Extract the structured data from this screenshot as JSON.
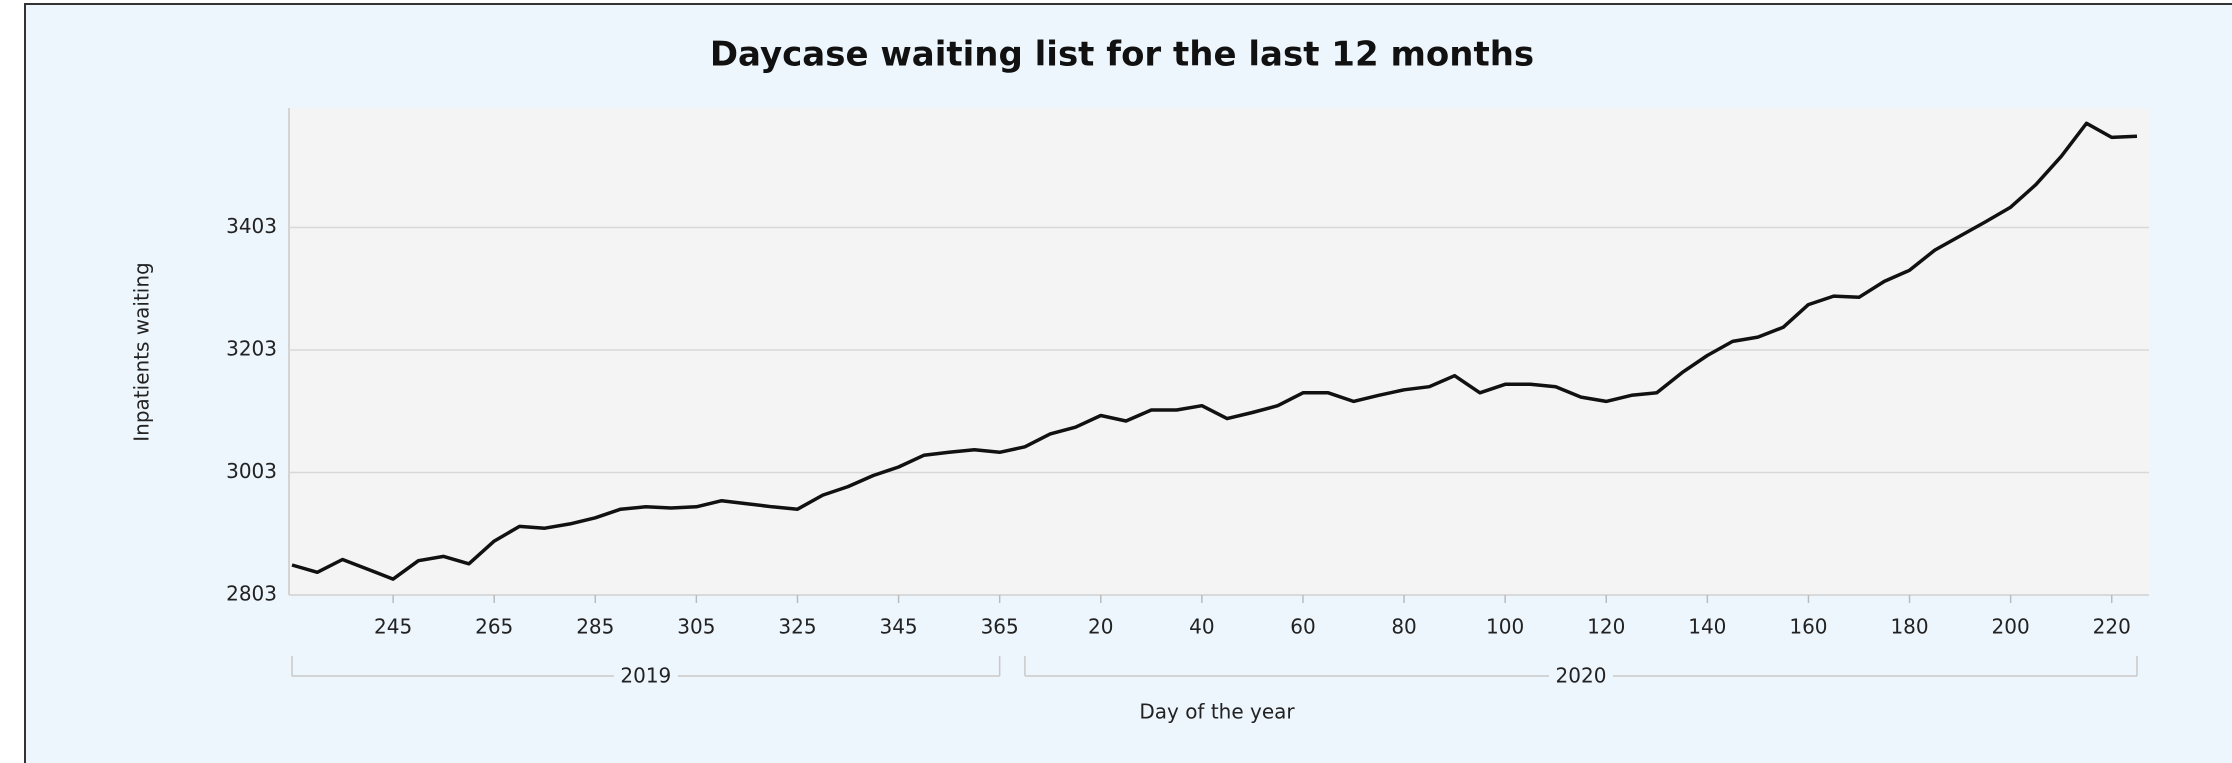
{
  "chart_data": {
    "type": "line",
    "title": "Daycase waiting list for the last 12 months",
    "x_label": "Day of the year",
    "y_label": "Inpatients waiting",
    "groups": [
      {
        "label": "2019",
        "categories": [
          null,
          null,
          null,
          null,
          "245",
          null,
          null,
          null,
          "265",
          null,
          null,
          null,
          "285",
          null,
          null,
          null,
          "305",
          null,
          null,
          null,
          "325",
          null,
          null,
          null,
          "345",
          null,
          null,
          null,
          "365"
        ]
      },
      {
        "label": "2020",
        "categories": [
          null,
          null,
          null,
          "20",
          null,
          null,
          null,
          "40",
          null,
          null,
          null,
          "60",
          null,
          null,
          null,
          "80",
          null,
          null,
          null,
          "100",
          null,
          null,
          null,
          "120",
          null,
          null,
          null,
          "140",
          null,
          null,
          null,
          "160",
          null,
          null,
          null,
          "180",
          null,
          null,
          null,
          "200",
          null,
          null,
          null,
          "220",
          null
        ]
      }
    ],
    "series": [
      {
        "name": "Inpatients waiting",
        "color": "#111111",
        "values": [
          2852,
          2840,
          2861,
          2845,
          2829,
          2859,
          2866,
          2854,
          2891,
          2915,
          2912,
          2919,
          2929,
          2943,
          2947,
          2945,
          2947,
          2957,
          2952,
          2947,
          2943,
          2966,
          2980,
          2998,
          3012,
          3031,
          3036,
          3040,
          3036,
          3045,
          3066,
          3077,
          3096,
          3087,
          3105,
          3105,
          3112,
          3091,
          3101,
          3112,
          3133,
          3133,
          3119,
          3129,
          3138,
          3143,
          3161,
          3133,
          3147,
          3147,
          3143,
          3126,
          3119,
          3129,
          3133,
          3166,
          3194,
          3217,
          3224,
          3240,
          3277,
          3291,
          3289,
          3315,
          3333,
          3366,
          3389,
          3412,
          3436,
          3473,
          3519,
          3573,
          3550,
          3552
        ]
      }
    ],
    "ylim": [
      2803,
      3598
    ],
    "yticks": [
      2803,
      3003,
      3203,
      3403
    ],
    "grid": true
  }
}
